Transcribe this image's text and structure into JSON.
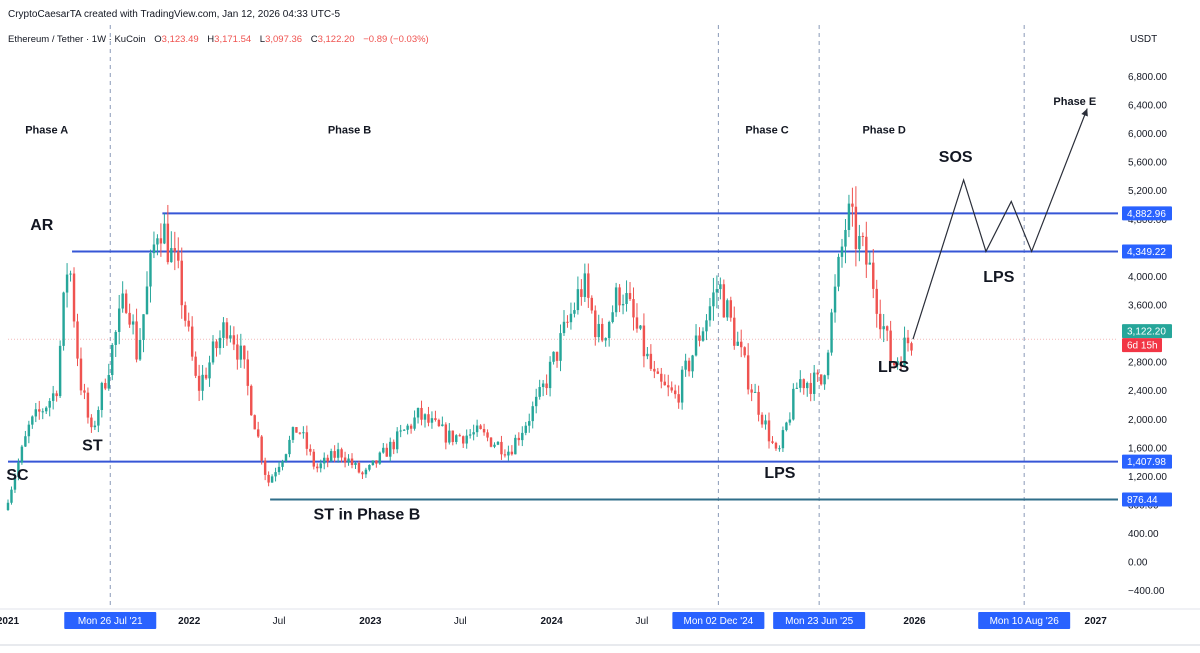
{
  "header": {
    "credit": "CryptoCaesarTA created with TradingView.com, Jan 12, 2026 04:33 UTC-5",
    "symbol": "Ethereum / Tether · 1W · KuCoin",
    "ohlc": [
      {
        "k": "O",
        "v": "3,123.49"
      },
      {
        "k": "H",
        "v": "3,171.54"
      },
      {
        "k": "L",
        "v": "3,097.36"
      },
      {
        "k": "C",
        "v": "3,122.20"
      }
    ],
    "change": "−0.89 (−0.03%)"
  },
  "colors": {
    "up": "#26a69a",
    "down": "#ef5350",
    "range_line": "#3656d6",
    "tag_blue": "#2962ff",
    "tag_green": "#26a69a",
    "tag_red": "#f23645",
    "text": "#131722",
    "axis_text": "#131722",
    "grid_dash": "#8a9ab8",
    "current_line": "#e57373"
  },
  "chart_data": {
    "type": "candlestick",
    "currency": "USDT",
    "ylim": [
      -600,
      7100
    ],
    "y_ticks": [
      -400,
      0,
      400,
      800,
      1200,
      1600,
      2000,
      2400,
      2800,
      3200,
      3600,
      4000,
      4400,
      4800,
      5200,
      5600,
      6000,
      6400,
      6800
    ],
    "y_tick_labels": [
      "−400.00",
      "0.00",
      "400.00",
      "800.00",
      "1,200.00",
      "1,600.00",
      "2,000.00",
      "2,400.00",
      "2,800.00",
      "3,200.00",
      "3,600.00",
      "4,000.00",
      "4,400.00",
      "4,800.00",
      "5,200.00",
      "5,600.00",
      "6,000.00",
      "6,400.00",
      "6,800.00"
    ],
    "x_range": [
      "2021-01-01",
      "2027-02-15"
    ],
    "x_ticks": [
      {
        "date": "2021-01-01",
        "label": "2021"
      },
      {
        "date": "2022-01-01",
        "label": "2022"
      },
      {
        "date": "2022-07-01",
        "label": "Jul"
      },
      {
        "date": "2023-01-01",
        "label": "2023"
      },
      {
        "date": "2023-07-01",
        "label": "Jul"
      },
      {
        "date": "2024-01-01",
        "label": "2024"
      },
      {
        "date": "2024-07-01",
        "label": "Jul"
      },
      {
        "date": "2026-01-01",
        "label": "2026"
      },
      {
        "date": "2027-01-01",
        "label": "2027"
      }
    ],
    "date_tags": [
      {
        "date": "2021-07-26",
        "label": "Mon 26 Jul '21"
      },
      {
        "date": "2024-12-02",
        "label": "Mon 02 Dec '24"
      },
      {
        "date": "2025-06-23",
        "label": "Mon 23 Jun '25"
      },
      {
        "date": "2026-08-10",
        "label": "Mon 10 Aug '26"
      }
    ],
    "vlines": [
      "2021-07-26",
      "2024-12-02",
      "2025-06-23",
      "2026-08-10"
    ],
    "price_levels": [
      {
        "value": 4882.96,
        "label": "4,882.96",
        "from": "2021-11-08"
      },
      {
        "value": 4349.22,
        "label": "4,349.22",
        "from": "2021-05-10"
      },
      {
        "value": 1407.98,
        "label": "1,407.98",
        "from": "2021-01-01"
      },
      {
        "value": 876.44,
        "label": "876.44",
        "from": "2022-06-13"
      }
    ],
    "current_price": {
      "value": 3122.2,
      "label": "3,122.20",
      "countdown": "6d 15h"
    },
    "phases": [
      {
        "label": "Phase A",
        "date": "2021-03-20",
        "value": 6000
      },
      {
        "label": "Phase B",
        "date": "2022-11-20",
        "value": 6000
      },
      {
        "label": "Phase C",
        "date": "2025-03-10",
        "value": 6000
      },
      {
        "label": "Phase D",
        "date": "2025-11-01",
        "value": 6000
      },
      {
        "label": "Phase E",
        "date": "2026-11-20",
        "value": 6400
      }
    ],
    "events": [
      {
        "label": "SC",
        "date": "2021-01-20",
        "value": 1150
      },
      {
        "label": "AR",
        "date": "2021-03-10",
        "value": 4650
      },
      {
        "label": "ST",
        "date": "2021-06-20",
        "value": 1560
      },
      {
        "label": "ST in Phase B",
        "date": "2022-12-25",
        "value": 600
      },
      {
        "label": "LPS",
        "date": "2025-04-05",
        "value": 1180
      },
      {
        "label": "LPS",
        "date": "2025-11-20",
        "value": 2660
      },
      {
        "label": "SOS",
        "date": "2026-03-25",
        "value": 5600
      },
      {
        "label": "LPS",
        "date": "2026-06-20",
        "value": 3920
      }
    ],
    "projection": [
      {
        "date": "2025-12-29",
        "value": 3122
      },
      {
        "date": "2026-04-10",
        "value": 5350
      },
      {
        "date": "2026-05-25",
        "value": 4350
      },
      {
        "date": "2026-07-15",
        "value": 5050
      },
      {
        "date": "2026-08-25",
        "value": 4350
      },
      {
        "date": "2026-12-15",
        "value": 6350
      }
    ],
    "key_points": [
      {
        "date": "2021-01-01",
        "value": 730
      },
      {
        "date": "2021-02-20",
        "value": 1900
      },
      {
        "date": "2021-04-15",
        "value": 2400
      },
      {
        "date": "2021-05-10",
        "value": 4350
      },
      {
        "date": "2021-06-01",
        "value": 2600
      },
      {
        "date": "2021-06-25",
        "value": 1780
      },
      {
        "date": "2021-08-10",
        "value": 3100
      },
      {
        "date": "2021-09-05",
        "value": 3800
      },
      {
        "date": "2021-09-25",
        "value": 2900
      },
      {
        "date": "2021-11-08",
        "value": 4850
      },
      {
        "date": "2021-12-20",
        "value": 3900
      },
      {
        "date": "2022-01-24",
        "value": 2400
      },
      {
        "date": "2022-03-28",
        "value": 3400
      },
      {
        "date": "2022-04-25",
        "value": 2800
      },
      {
        "date": "2022-06-15",
        "value": 1100
      },
      {
        "date": "2022-08-15",
        "value": 1900
      },
      {
        "date": "2022-09-20",
        "value": 1300
      },
      {
        "date": "2022-11-08",
        "value": 1550
      },
      {
        "date": "2022-12-25",
        "value": 1200
      },
      {
        "date": "2023-04-15",
        "value": 2050
      },
      {
        "date": "2023-06-15",
        "value": 1750
      },
      {
        "date": "2023-08-15",
        "value": 1800
      },
      {
        "date": "2023-10-15",
        "value": 1560
      },
      {
        "date": "2023-12-15",
        "value": 2300
      },
      {
        "date": "2024-03-11",
        "value": 3900
      },
      {
        "date": "2024-04-15",
        "value": 3100
      },
      {
        "date": "2024-05-27",
        "value": 3850
      },
      {
        "date": "2024-08-05",
        "value": 2500
      },
      {
        "date": "2024-09-15",
        "value": 2300
      },
      {
        "date": "2024-12-09",
        "value": 3900
      },
      {
        "date": "2025-02-01",
        "value": 2700
      },
      {
        "date": "2025-04-07",
        "value": 1450
      },
      {
        "date": "2025-05-20",
        "value": 2550
      },
      {
        "date": "2025-07-05",
        "value": 2500
      },
      {
        "date": "2025-08-25",
        "value": 4850
      },
      {
        "date": "2025-10-15",
        "value": 4000
      },
      {
        "date": "2025-11-24",
        "value": 2750
      },
      {
        "date": "2025-12-29",
        "value": 3122
      }
    ]
  }
}
